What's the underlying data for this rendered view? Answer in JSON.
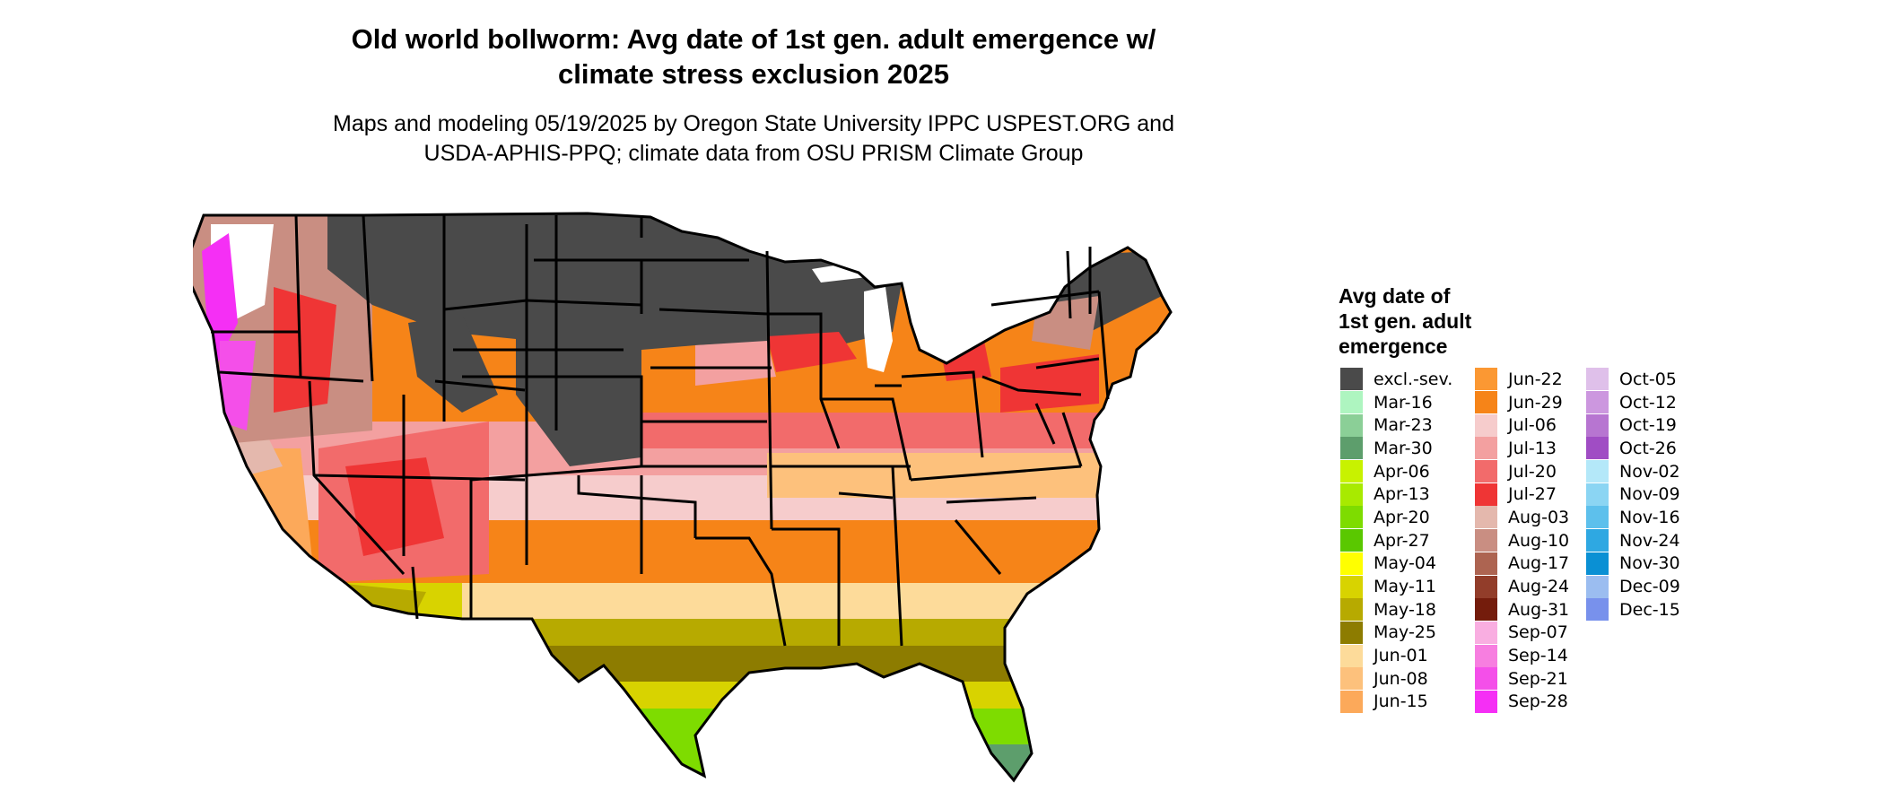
{
  "title_line1": "Old world bollworm: Avg date of 1st gen. adult emergence w/",
  "title_line2": "climate stress exclusion 2025",
  "subtitle_line1": "Maps and modeling 05/19/2025 by Oregon State University IPPC USPEST.ORG and",
  "subtitle_line2": "USDA-APHIS-PPQ; climate data from OSU PRISM Climate Group",
  "legend": {
    "title_line1": "Avg date of",
    "title_line2": "1st gen. adult",
    "title_line3": "emergence",
    "items": [
      {
        "label": "excl.-sev.",
        "color": "#4a4a4a"
      },
      {
        "label": "Mar-16",
        "color": "#aef5c0"
      },
      {
        "label": "Mar-23",
        "color": "#8bcf97"
      },
      {
        "label": "Mar-30",
        "color": "#5d9e6c"
      },
      {
        "label": "Apr-06",
        "color": "#c8f200"
      },
      {
        "label": "Apr-13",
        "color": "#a8ea00"
      },
      {
        "label": "Apr-20",
        "color": "#7edc00"
      },
      {
        "label": "Apr-27",
        "color": "#5ac800"
      },
      {
        "label": "May-04",
        "color": "#ffff00"
      },
      {
        "label": "May-11",
        "color": "#d8d300"
      },
      {
        "label": "May-18",
        "color": "#b7aa00"
      },
      {
        "label": "May-25",
        "color": "#8d7c00"
      },
      {
        "label": "Jun-01",
        "color": "#fddb9a"
      },
      {
        "label": "Jun-08",
        "color": "#fdc17c"
      },
      {
        "label": "Jun-15",
        "color": "#fca95a"
      },
      {
        "label": "Jun-22",
        "color": "#fb9833"
      },
      {
        "label": "Jun-29",
        "color": "#f68418"
      },
      {
        "label": "Jul-06",
        "color": "#f6cccc"
      },
      {
        "label": "Jul-13",
        "color": "#f3a0a0"
      },
      {
        "label": "Jul-20",
        "color": "#f26b6b"
      },
      {
        "label": "Jul-27",
        "color": "#ef3535"
      },
      {
        "label": "Aug-03",
        "color": "#e4b8ad"
      },
      {
        "label": "Aug-10",
        "color": "#c98e82"
      },
      {
        "label": "Aug-17",
        "color": "#ad6451"
      },
      {
        "label": "Aug-24",
        "color": "#923d2a"
      },
      {
        "label": "Aug-31",
        "color": "#741c0c"
      },
      {
        "label": "Sep-07",
        "color": "#f9aee1"
      },
      {
        "label": "Sep-14",
        "color": "#f77ee0"
      },
      {
        "label": "Sep-21",
        "color": "#f44fe9"
      },
      {
        "label": "Sep-28",
        "color": "#f52ff5"
      },
      {
        "label": "Oct-05",
        "color": "#dfc0ea"
      },
      {
        "label": "Oct-12",
        "color": "#cc97df"
      },
      {
        "label": "Oct-19",
        "color": "#b775d1"
      },
      {
        "label": "Oct-26",
        "color": "#a04dc4"
      },
      {
        "label": "Nov-02",
        "color": "#b4e8f9"
      },
      {
        "label": "Nov-09",
        "color": "#8bd5f3"
      },
      {
        "label": "Nov-16",
        "color": "#5dc0ec"
      },
      {
        "label": "Nov-24",
        "color": "#2ea8e2"
      },
      {
        "label": "Nov-30",
        "color": "#0a90d4"
      },
      {
        "label": "Dec-09",
        "color": "#9bbdf0"
      },
      {
        "label": "Dec-15",
        "color": "#7891ec"
      }
    ]
  }
}
